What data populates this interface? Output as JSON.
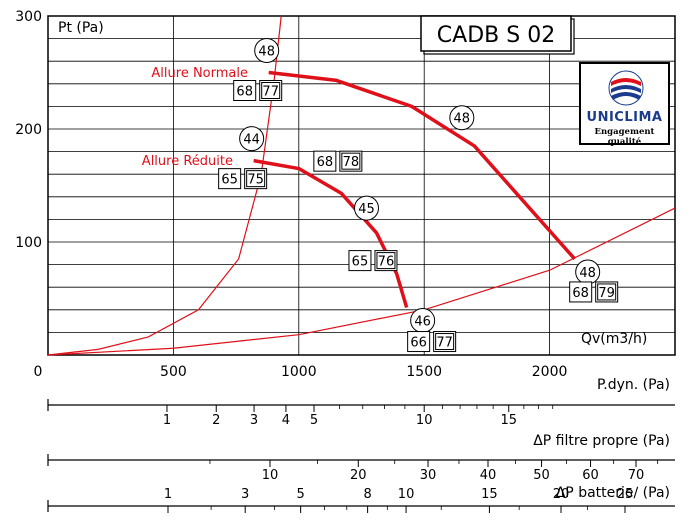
{
  "chart_data": {
    "type": "line",
    "model_label": "CADB S 02",
    "ylabel": "Pt (Pa)",
    "xlabel": "Qv(m3/h)",
    "x_range": [
      0,
      2500
    ],
    "y_range": [
      0,
      300
    ],
    "x_ticks": [
      {
        "value": 0,
        "label": "0"
      },
      {
        "value": 500,
        "label": "500"
      },
      {
        "value": 1000,
        "label": "1000"
      },
      {
        "value": 1500,
        "label": "1500"
      },
      {
        "value": 2000,
        "label": "2000"
      }
    ],
    "y_ticks": [
      {
        "value": 100,
        "label": "100"
      },
      {
        "value": 200,
        "label": "200"
      },
      {
        "value": 300,
        "label": "300"
      }
    ],
    "grid": true,
    "series": [
      {
        "name": "Allure Normale",
        "color": "#e0101a",
        "points": [
          [
            880,
            250
          ],
          [
            1150,
            243
          ],
          [
            1450,
            220
          ],
          [
            1700,
            185
          ],
          [
            1880,
            140
          ],
          [
            2020,
            105
          ],
          [
            2100,
            85
          ]
        ],
        "markers": [
          {
            "x": 880,
            "y": 250,
            "noise": "48",
            "power": "68",
            "power2": "77"
          },
          {
            "x": 1650,
            "y": 210,
            "noise": "48"
          },
          {
            "x": 2100,
            "y": 85,
            "noise": "48",
            "power": "68",
            "power2": "79"
          }
        ]
      },
      {
        "name": "Allure Réduite",
        "color": "#e0101a",
        "points": [
          [
            820,
            172
          ],
          [
            1000,
            165
          ],
          [
            1170,
            143
          ],
          [
            1310,
            108
          ],
          [
            1390,
            72
          ],
          [
            1430,
            42
          ]
        ],
        "markers": [
          {
            "x": 820,
            "y": 172,
            "noise": "44",
            "power": "65",
            "power2": "75"
          },
          {
            "x": 1270,
            "y": 130,
            "noise": "45"
          },
          {
            "x": 1430,
            "y": 42,
            "noise": "46",
            "power": "66",
            "power2": "77"
          }
        ]
      }
    ],
    "system_curves": [
      {
        "color": "#e0101a",
        "points": [
          [
            0,
            0
          ],
          [
            200,
            5
          ],
          [
            400,
            16
          ],
          [
            600,
            40
          ],
          [
            760,
            85
          ],
          [
            850,
            160
          ],
          [
            900,
            240
          ],
          [
            930,
            300
          ]
        ]
      },
      {
        "color": "#e0101a",
        "points": [
          [
            0,
            0
          ],
          [
            500,
            6
          ],
          [
            1000,
            18
          ],
          [
            1500,
            40
          ],
          [
            2000,
            75
          ],
          [
            2500,
            130
          ]
        ]
      }
    ],
    "unlabeled_markers": [
      {
        "x": 1060,
        "y": 168,
        "power": "68",
        "power2": "78"
      },
      {
        "x": 1200,
        "y": 80,
        "power": "65",
        "power2": "76"
      }
    ],
    "secondary_axes": [
      {
        "title": "P.dyn.  (Pa)",
        "scale": "sqrt",
        "ticks": [
          {
            "value": 1,
            "label": "1"
          },
          {
            "value": 2,
            "label": "2"
          },
          {
            "value": 3,
            "label": "3"
          },
          {
            "value": 4,
            "label": "4"
          },
          {
            "value": 5,
            "label": "5"
          },
          {
            "value": 10,
            "label": "10"
          },
          {
            "value": 15,
            "label": "15"
          }
        ],
        "minor": [
          6,
          7,
          8,
          9,
          11,
          12,
          13,
          14,
          16,
          17,
          18
        ]
      },
      {
        "title": "ΔP  filtre propre (Pa)",
        "scale": "pow1.8",
        "ticks": [
          {
            "value": 10,
            "label": "10"
          },
          {
            "value": 20,
            "label": "20"
          },
          {
            "value": 30,
            "label": "30"
          },
          {
            "value": 40,
            "label": "40"
          },
          {
            "value": 50,
            "label": "50"
          },
          {
            "value": 60,
            "label": "60"
          },
          {
            "value": 70,
            "label": "70"
          }
        ],
        "minor": [
          5,
          15,
          25,
          35,
          45,
          55,
          65,
          75
        ]
      },
      {
        "title": "ΔP  batterie∕ (Pa)",
        "scale": "pow1.8",
        "ticks": [
          {
            "value": 1,
            "label": "1"
          },
          {
            "value": 3,
            "label": "3"
          },
          {
            "value": 5,
            "label": "5"
          },
          {
            "value": 8,
            "label": "8"
          },
          {
            "value": 10,
            "label": "10"
          },
          {
            "value": 15,
            "label": "15"
          },
          {
            "value": 20,
            "label": "20"
          },
          {
            "value": 25,
            "label": "25"
          }
        ],
        "minor": [
          2,
          4,
          6,
          7,
          9,
          12,
          17,
          22
        ]
      }
    ]
  },
  "logo": {
    "brand": "UNICLIMA",
    "tagline": "Engagement qualité",
    "colors": {
      "red": "#e0101a",
      "blue": "#1b3b8c"
    }
  }
}
